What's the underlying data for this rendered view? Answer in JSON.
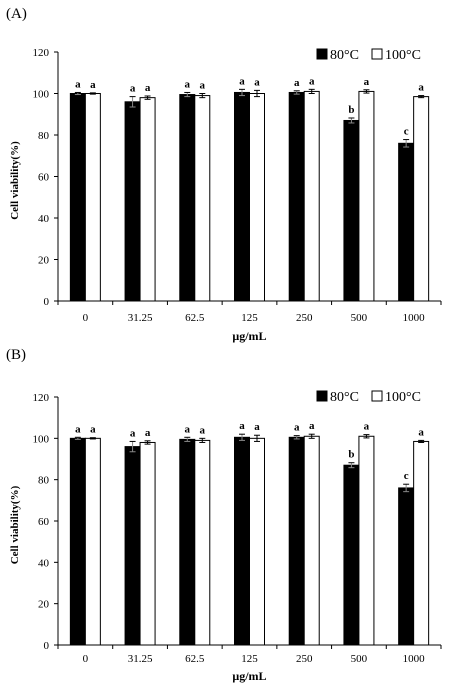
{
  "chart_data": [
    {
      "type": "bar",
      "panel_label": "(A)",
      "categories": [
        "0",
        "31.25",
        "62.5",
        "125",
        "250",
        "500",
        "1000"
      ],
      "xlabel": "μg/mL",
      "ylabel": "Cell viability(%)",
      "ylim": [
        0,
        120
      ],
      "yticks": [
        0,
        20,
        40,
        60,
        80,
        100,
        120
      ],
      "grid": false,
      "legend_position": "top-right",
      "series": [
        {
          "name": "80°C",
          "color": "#000000",
          "values": [
            100,
            96,
            99.5,
            100.5,
            100.5,
            87,
            76
          ],
          "errors": [
            0.5,
            2.5,
            1.0,
            1.5,
            0.8,
            1.2,
            1.8
          ],
          "letters": [
            "a",
            "a",
            "a",
            "a",
            "a",
            "b",
            "c"
          ]
        },
        {
          "name": "100°C",
          "color": "#ffffff",
          "values": [
            100,
            98,
            99,
            100,
            101,
            101,
            98.5
          ],
          "errors": [
            0.3,
            0.8,
            1.0,
            1.5,
            1.0,
            0.8,
            0.5
          ],
          "letters": [
            "a",
            "a",
            "a",
            "a",
            "a",
            "a",
            "a"
          ]
        }
      ]
    },
    {
      "type": "bar",
      "panel_label": "(B)",
      "categories": [
        "0",
        "31.25",
        "62.5",
        "125",
        "250",
        "500",
        "1000"
      ],
      "xlabel": "μg/mL",
      "ylabel": "Cell viability(%)",
      "ylim": [
        0,
        120
      ],
      "yticks": [
        0,
        20,
        40,
        60,
        80,
        100,
        120
      ],
      "grid": false,
      "legend_position": "top-right",
      "series": [
        {
          "name": "80°C",
          "color": "#000000",
          "values": [
            100,
            96,
            99.5,
            100.5,
            100.5,
            87,
            76
          ],
          "errors": [
            0.5,
            2.5,
            1.0,
            1.5,
            0.8,
            1.2,
            1.8
          ],
          "letters": [
            "a",
            "a",
            "a",
            "a",
            "a",
            "b",
            "c"
          ]
        },
        {
          "name": "100°C",
          "color": "#ffffff",
          "values": [
            100,
            98,
            99,
            100,
            101,
            101,
            98.5
          ],
          "errors": [
            0.3,
            0.8,
            1.0,
            1.5,
            1.0,
            0.8,
            0.5
          ],
          "letters": [
            "a",
            "a",
            "a",
            "a",
            "a",
            "a",
            "a"
          ]
        }
      ]
    }
  ]
}
